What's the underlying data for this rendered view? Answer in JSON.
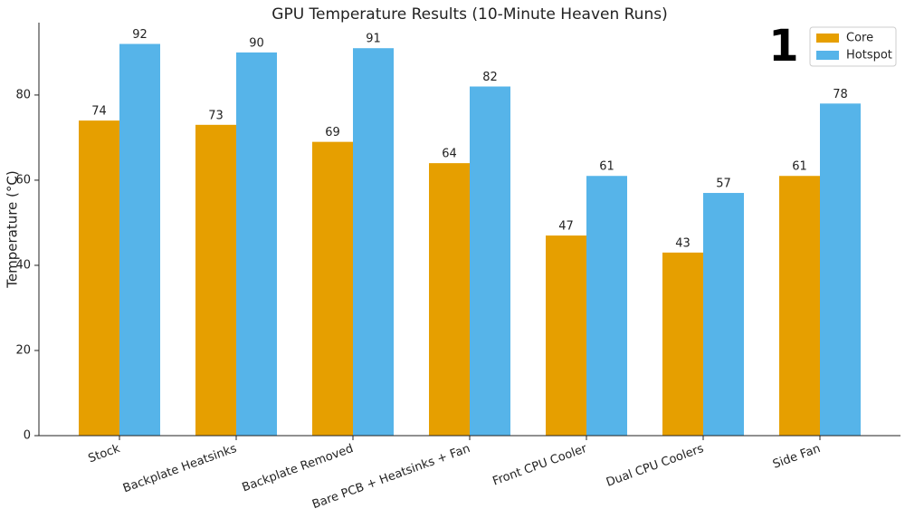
{
  "chart_data": {
    "type": "bar",
    "title": "GPU Temperature Results (10-Minute Heaven Runs)",
    "y_label": "Temperature (°C)",
    "annotation": "1",
    "categories": [
      "Stock",
      "Backplate Heatsinks",
      "Backplate Removed",
      "Bare PCB + Heatsinks + Fan",
      "Front CPU Cooler",
      "Dual CPU Coolers",
      "Side Fan"
    ],
    "series": [
      {
        "name": "Core",
        "color": "#e69f00",
        "values": [
          74,
          73,
          69,
          64,
          47,
          43,
          61
        ]
      },
      {
        "name": "Hotspot",
        "color": "#56b4e9",
        "values": [
          92,
          90,
          91,
          82,
          61,
          57,
          78
        ]
      }
    ],
    "ylim": [
      0,
      97
    ],
    "yticks": [
      0,
      20,
      40,
      60,
      80
    ],
    "legend": "upper right"
  }
}
